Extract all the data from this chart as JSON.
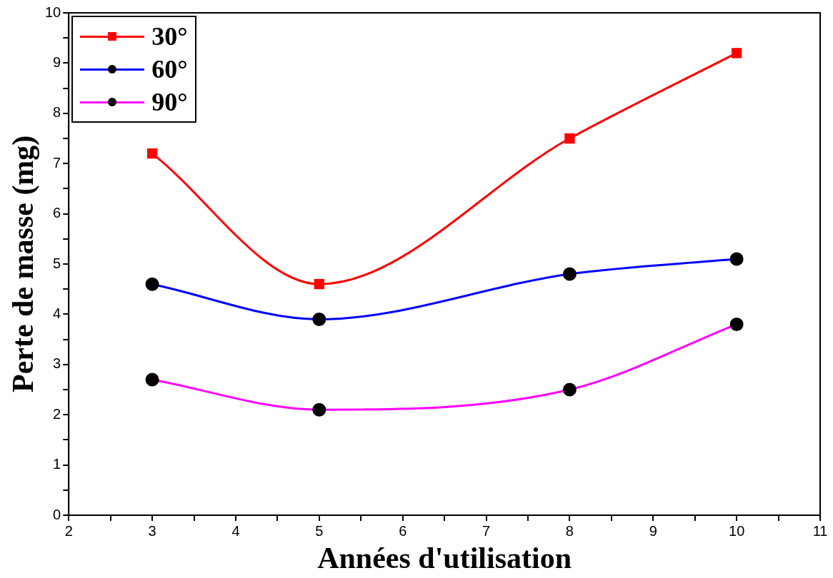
{
  "chart_data": {
    "type": "line",
    "x": [
      3,
      5,
      8,
      10
    ],
    "series": [
      {
        "name": "30°",
        "color": "#ff0000",
        "colors": [
          "#ff0000",
          "#ff0000",
          "#ff0000",
          "#ff0000"
        ],
        "marker": "square",
        "values": [
          7.2,
          4.6,
          7.5,
          9.2
        ]
      },
      {
        "name": "60°",
        "color": "#0000ff",
        "colors": [
          "#000000",
          "#000000",
          "#000000",
          "#000000"
        ],
        "marker": "circle",
        "values": [
          4.6,
          3.9,
          4.8,
          5.1
        ]
      },
      {
        "name": "90°",
        "color": "#ff00ff",
        "colors": [
          "#000000",
          "#000000",
          "#000000",
          "#000000"
        ],
        "marker": "circle",
        "values": [
          2.7,
          2.1,
          2.5,
          3.8
        ]
      }
    ],
    "xlabel": "Années d'utilisation",
    "ylabel": "Perte de masse (mg)",
    "xlim": [
      2,
      11
    ],
    "xticks": [
      2,
      3,
      4,
      5,
      6,
      7,
      8,
      9,
      10,
      11
    ],
    "ylim": [
      0,
      10
    ],
    "yticks": [
      0,
      1,
      2,
      3,
      4,
      5,
      6,
      7,
      8,
      9,
      10
    ],
    "grid": false,
    "legend": "top left",
    "line_style": "solid"
  }
}
